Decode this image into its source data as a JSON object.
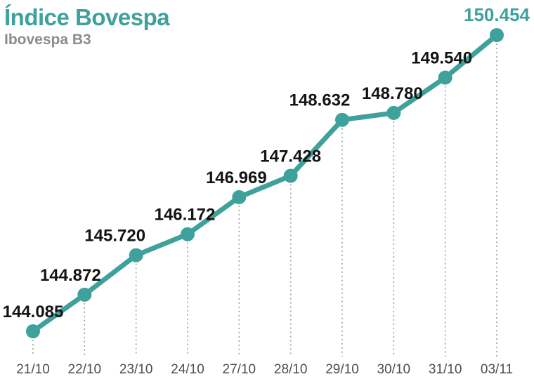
{
  "header": {
    "title": "Índice Bovespa",
    "subtitle": "Ibovespa B3"
  },
  "colors": {
    "accent": "#3FA19B",
    "title": "#3FA19B",
    "subtitle": "#8C8C8C",
    "data_label": "#141414",
    "axis_label": "#4D4D4D",
    "gridline": "#9E9E9E",
    "background": "#FFFFFF"
  },
  "chart_data": {
    "type": "line",
    "title": "Índice Bovespa",
    "subtitle": "Ibovespa B3",
    "categories": [
      "21/10",
      "22/10",
      "23/10",
      "24/10",
      "27/10",
      "28/10",
      "29/10",
      "30/10",
      "31/10",
      "03/11"
    ],
    "values": [
      144085,
      144872,
      145720,
      146172,
      146969,
      147428,
      148632,
      148780,
      149540,
      150454
    ],
    "point_labels": [
      "144.085",
      "144.872",
      "145.720",
      "146.172",
      "146.969",
      "147.428",
      "148.632",
      "148.780",
      "149.540",
      "150.454"
    ],
    "xlabel": "",
    "ylabel": "",
    "ylim": [
      144085,
      150454
    ],
    "grid": "dotted-vertical-per-point",
    "legend": "none",
    "highlight_last_point": true
  }
}
